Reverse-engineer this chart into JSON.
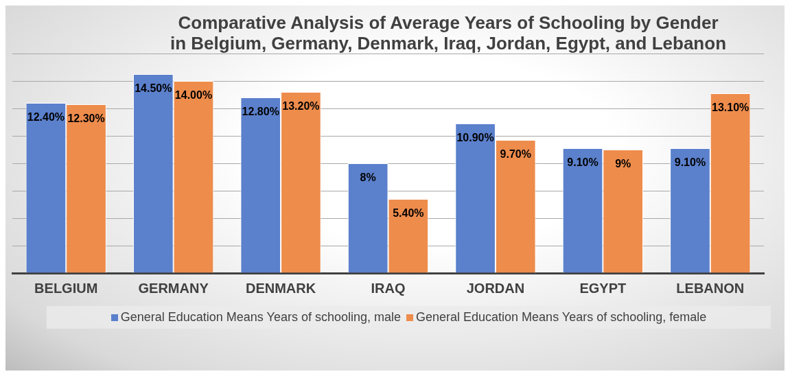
{
  "chart_data": {
    "type": "bar",
    "title": "Comparative Analysis of Average Years of Schooling by Gender in Belgium, Germany, Denmark, Iraq, Jordan, Egypt, and Lebanon",
    "categories": [
      "BELGIUM",
      "GERMANY",
      "DENMARK",
      "IRAQ",
      "JORDAN",
      "EGYPT",
      "LEBANON"
    ],
    "series": [
      {
        "name": "General Education Means Years of schooling, male",
        "color": "#5b80cc",
        "values": [
          12.4,
          14.5,
          12.8,
          8,
          10.9,
          9.1,
          9.1
        ],
        "value_labels": [
          "12.40%",
          "14.50%",
          "12.80%",
          "8%",
          "10.90%",
          "9.10%",
          "9.10%"
        ]
      },
      {
        "name": "General Education Means Years of schooling, female",
        "color": "#ee8c4c",
        "values": [
          12.3,
          14.0,
          13.2,
          5.4,
          9.7,
          9,
          13.1
        ],
        "value_labels": [
          "12.30%",
          "14.00%",
          "13.20%",
          "5.40%",
          "9.70%",
          "9%",
          "13.10%"
        ]
      }
    ],
    "grid": "y",
    "legend": "bottom"
  }
}
